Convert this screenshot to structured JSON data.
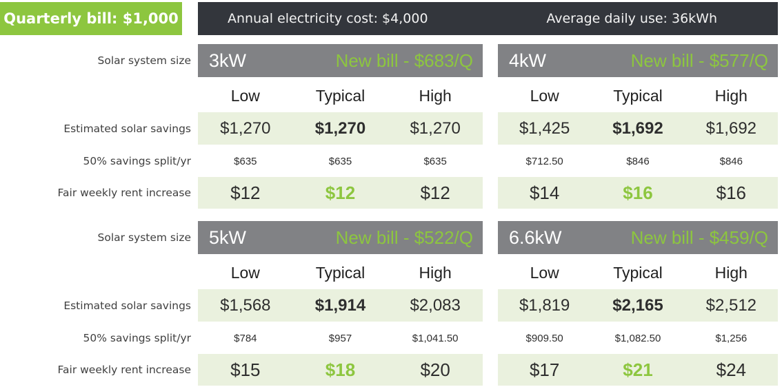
{
  "summary": {
    "quarterly_bill": "Quarterly bill: $1,000",
    "annual_cost": "Annual electricity cost: $4,000",
    "daily_use": "Average daily use: 36kWh"
  },
  "row_labels": {
    "system_size": "Solar system size",
    "savings": "Estimated solar savings",
    "split": "50% savings split/yr",
    "rent": "Fair weekly rent increase"
  },
  "col_headers": [
    "Low",
    "Typical",
    "High"
  ],
  "panels": [
    {
      "size": "3kW",
      "new_bill": "New bill - $683/Q",
      "savings": [
        "$1,270",
        "$1,270",
        "$1,270"
      ],
      "split": [
        "$635",
        "$635",
        "$635"
      ],
      "rent": [
        "$12",
        "$12",
        "$12"
      ]
    },
    {
      "size": "4kW",
      "new_bill": "New bill - $577/Q",
      "savings": [
        "$1,425",
        "$1,692",
        "$1,692"
      ],
      "split": [
        "$712.50",
        "$846",
        "$846"
      ],
      "rent": [
        "$14",
        "$16",
        "$16"
      ]
    },
    {
      "size": "5kW",
      "new_bill": "New bill - $522/Q",
      "savings": [
        "$1,568",
        "$1,914",
        "$2,083"
      ],
      "split": [
        "$784",
        "$957",
        "$1,041.50"
      ],
      "rent": [
        "$15",
        "$18",
        "$20"
      ]
    },
    {
      "size": "6.6kW",
      "new_bill": "New bill - $459/Q",
      "savings": [
        "$1,819",
        "$2,165",
        "$2,512"
      ],
      "split": [
        "$909.50",
        "$1,082.50",
        "$1,256"
      ],
      "rent": [
        "$17",
        "$21",
        "$24"
      ]
    }
  ],
  "colors": {
    "accent_green": "#8dc63f",
    "row_green": "#eaf1de",
    "panel_header_gray": "#818285",
    "dark_bar": "#33363c"
  }
}
